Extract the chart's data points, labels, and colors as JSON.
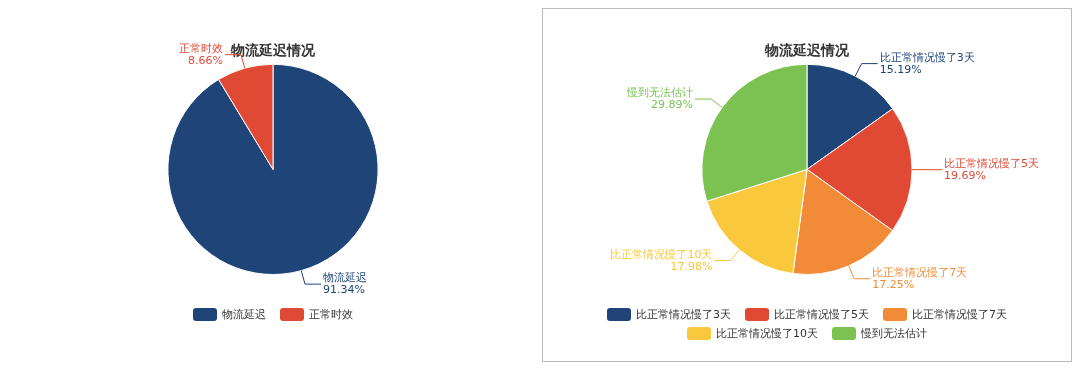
{
  "chart_data": [
    {
      "type": "pie",
      "title": "物流延迟情况",
      "categories": [
        "物流延迟",
        "正常时效"
      ],
      "values": [
        91.34,
        8.66
      ],
      "value_labels": [
        "91.34%",
        "8.66%"
      ],
      "colors": [
        "#1e4478",
        "#e04a35"
      ],
      "legend": "bottom"
    },
    {
      "type": "pie",
      "title": "物流延迟情况",
      "categories": [
        "比正常情况慢了3天",
        "比正常情况慢了5天",
        "比正常情况慢了7天",
        "比正常情况慢了10天",
        "慢到无法估计"
      ],
      "values": [
        15.19,
        19.69,
        17.25,
        17.98,
        29.89
      ],
      "value_labels": [
        "15.19%",
        "19.69%",
        "17.25%",
        "17.98%",
        "29.89%"
      ],
      "colors": [
        "#1e4478",
        "#e04a35",
        "#f18b37",
        "#f9c83d",
        "#7bc252"
      ],
      "legend": "bottom"
    }
  ]
}
